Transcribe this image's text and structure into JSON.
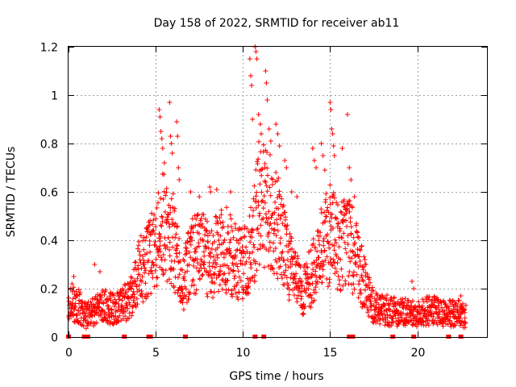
{
  "chart_data": {
    "type": "scatter",
    "title": "Day 158 of 2022, SRMTID for receiver ab11",
    "xlabel": "GPS time / hours",
    "ylabel": "SRMTID / TECUs",
    "xlim": [
      0,
      24
    ],
    "ylim": [
      0,
      1.2
    ],
    "x_ticks": [
      "0",
      "5",
      "10",
      "15",
      "20"
    ],
    "y_ticks": [
      "0",
      "0.2",
      "0.4",
      "0.6",
      "0.8",
      "1",
      "1.2"
    ],
    "x_tick_values": [
      0,
      5,
      10,
      15,
      20
    ],
    "y_tick_values": [
      0,
      0.2,
      0.4,
      0.6,
      0.8,
      1.0,
      1.2
    ],
    "grid": true,
    "marker": "plus",
    "color": "#ff0000",
    "series": [
      {
        "name": "SRMTID",
        "profile": [
          [
            0.0,
            0.12
          ],
          [
            0.5,
            0.13
          ],
          [
            1.0,
            0.08
          ],
          [
            1.5,
            0.1
          ],
          [
            2.0,
            0.12
          ],
          [
            2.5,
            0.11
          ],
          [
            3.0,
            0.12
          ],
          [
            3.5,
            0.15
          ],
          [
            4.0,
            0.25
          ],
          [
            4.5,
            0.3
          ],
          [
            5.0,
            0.35
          ],
          [
            5.5,
            0.45
          ],
          [
            6.0,
            0.38
          ],
          [
            6.5,
            0.2
          ],
          [
            7.0,
            0.3
          ],
          [
            7.5,
            0.35
          ],
          [
            8.0,
            0.3
          ],
          [
            8.5,
            0.32
          ],
          [
            9.0,
            0.35
          ],
          [
            9.5,
            0.3
          ],
          [
            10.0,
            0.28
          ],
          [
            10.5,
            0.35
          ],
          [
            11.0,
            0.55
          ],
          [
            11.5,
            0.5
          ],
          [
            12.0,
            0.45
          ],
          [
            12.5,
            0.32
          ],
          [
            13.0,
            0.22
          ],
          [
            13.5,
            0.18
          ],
          [
            14.0,
            0.25
          ],
          [
            14.5,
            0.35
          ],
          [
            15.0,
            0.4
          ],
          [
            15.5,
            0.35
          ],
          [
            16.0,
            0.4
          ],
          [
            16.5,
            0.3
          ],
          [
            17.0,
            0.2
          ],
          [
            17.5,
            0.12
          ],
          [
            18.0,
            0.11
          ],
          [
            18.5,
            0.1
          ],
          [
            19.0,
            0.1
          ],
          [
            19.5,
            0.1
          ],
          [
            20.0,
            0.09
          ],
          [
            20.5,
            0.1
          ],
          [
            21.0,
            0.1
          ],
          [
            21.5,
            0.09
          ],
          [
            22.0,
            0.09
          ],
          [
            22.5,
            0.09
          ],
          [
            22.8,
            0.08
          ]
        ],
        "highlights": [
          [
            0.2,
            0.22
          ],
          [
            0.3,
            0.25
          ],
          [
            1.5,
            0.3
          ],
          [
            1.8,
            0.27
          ],
          [
            5.2,
            0.94
          ],
          [
            5.25,
            0.91
          ],
          [
            5.3,
            0.85
          ],
          [
            5.35,
            0.82
          ],
          [
            5.4,
            0.78
          ],
          [
            5.5,
            0.72
          ],
          [
            5.8,
            0.97
          ],
          [
            5.85,
            0.83
          ],
          [
            5.9,
            0.8
          ],
          [
            5.95,
            0.76
          ],
          [
            6.2,
            0.89
          ],
          [
            6.25,
            0.83
          ],
          [
            6.3,
            0.7
          ],
          [
            6.35,
            0.65
          ],
          [
            7.0,
            0.6
          ],
          [
            7.5,
            0.58
          ],
          [
            8.1,
            0.62
          ],
          [
            8.15,
            0.6
          ],
          [
            8.5,
            0.61
          ],
          [
            9.3,
            0.6
          ],
          [
            10.4,
            1.15
          ],
          [
            10.45,
            1.08
          ],
          [
            10.5,
            1.04
          ],
          [
            10.55,
            0.9
          ],
          [
            10.7,
            1.2
          ],
          [
            10.75,
            1.18
          ],
          [
            10.8,
            1.15
          ],
          [
            10.9,
            0.92
          ],
          [
            11.0,
            0.88
          ],
          [
            11.05,
            0.84
          ],
          [
            11.3,
            1.1
          ],
          [
            11.35,
            1.05
          ],
          [
            11.4,
            0.98
          ],
          [
            11.5,
            0.86
          ],
          [
            11.6,
            0.81
          ],
          [
            11.9,
            0.88
          ],
          [
            12.0,
            0.84
          ],
          [
            12.1,
            0.79
          ],
          [
            12.4,
            0.73
          ],
          [
            12.5,
            0.7
          ],
          [
            12.8,
            0.6
          ],
          [
            13.1,
            0.58
          ],
          [
            14.0,
            0.78
          ],
          [
            14.1,
            0.73
          ],
          [
            14.2,
            0.7
          ],
          [
            14.5,
            0.8
          ],
          [
            14.6,
            0.75
          ],
          [
            14.7,
            0.69
          ],
          [
            15.0,
            0.97
          ],
          [
            15.05,
            0.94
          ],
          [
            15.1,
            0.86
          ],
          [
            15.15,
            0.84
          ],
          [
            15.2,
            0.79
          ],
          [
            15.25,
            0.75
          ],
          [
            15.7,
            0.78
          ],
          [
            16.0,
            0.92
          ],
          [
            16.1,
            0.7
          ],
          [
            16.2,
            0.65
          ],
          [
            16.4,
            0.58
          ],
          [
            17.0,
            0.32
          ],
          [
            19.7,
            0.23
          ],
          [
            19.8,
            0.2
          ],
          [
            21.5,
            0.15
          ],
          [
            22.5,
            0.17
          ]
        ],
        "baseline_x": [
          0.0,
          0.9,
          1.0,
          1.1,
          3.2,
          4.6,
          4.7,
          6.7,
          10.7,
          11.2,
          16.1,
          16.2,
          16.3,
          18.6,
          19.8,
          21.8,
          22.5
        ]
      }
    ]
  }
}
